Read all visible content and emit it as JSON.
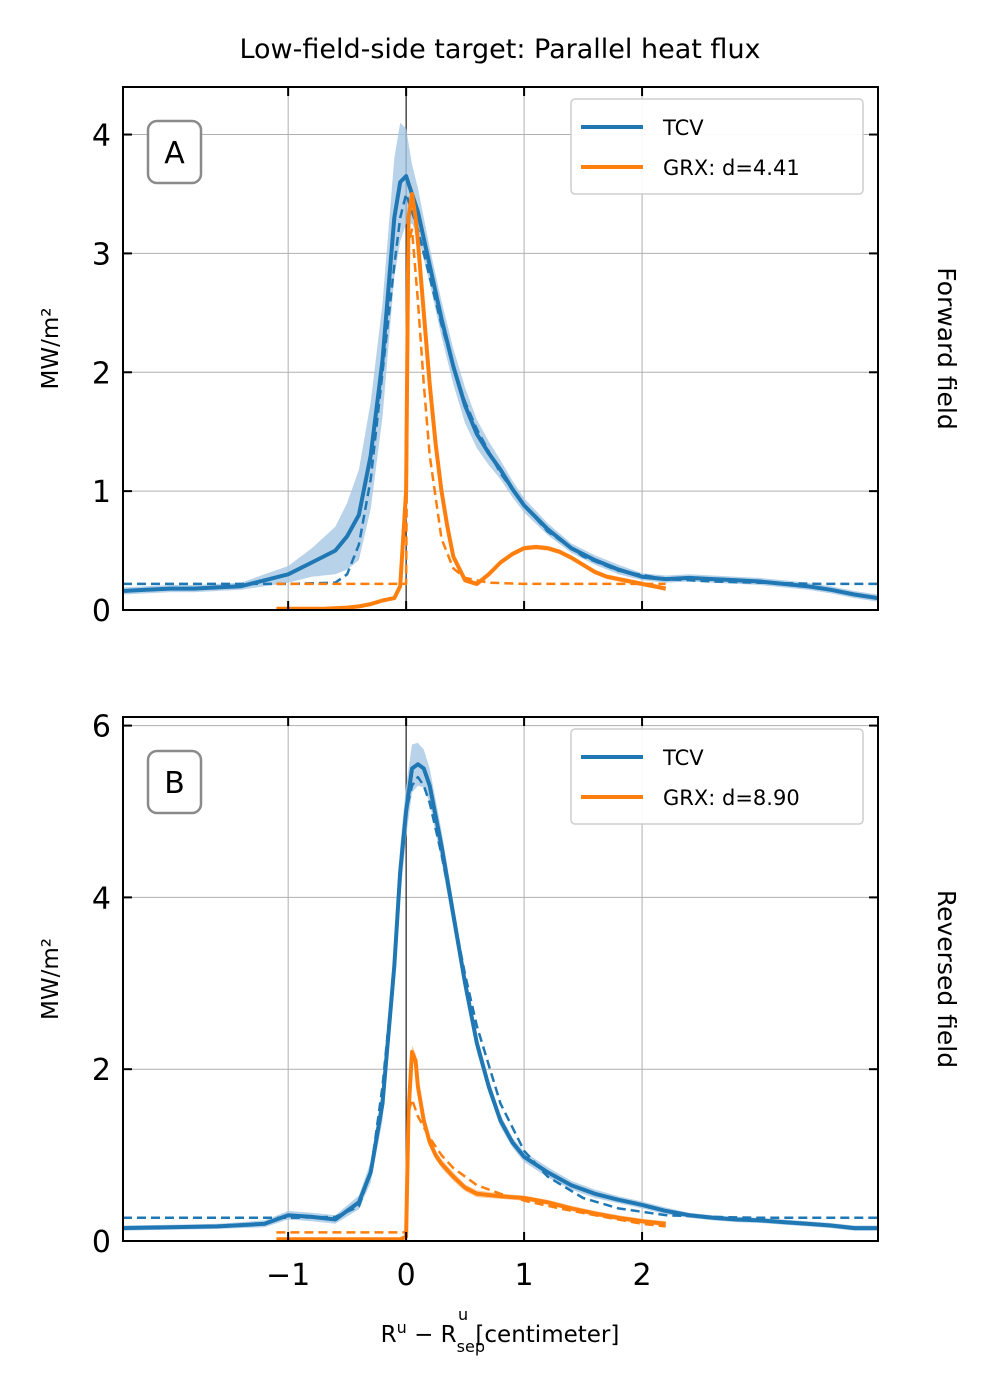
{
  "figure": {
    "title": "Low-field-side target: Parallel heat flux",
    "xlabel_main": "R",
    "xlabel_sup": "u",
    "xlabel_minus": " − R",
    "xlabel_sub": "sep",
    "xlabel_sup2": "u",
    "xlabel_units": " [centimeter]"
  },
  "colors": {
    "tcv": "#1f77b4",
    "grx": "#ff7f0e",
    "band": "#a6c8e3",
    "grid": "#b0b0b0",
    "frame": "#000000"
  },
  "chart_data": [
    {
      "type": "line",
      "panel_label": "A",
      "side_label": "Forward field",
      "ylabel": "MW/m²",
      "xlim": [
        -2.4,
        4.0
      ],
      "ylim": [
        0,
        4.4
      ],
      "xticks": [
        -1,
        0,
        1,
        2
      ],
      "xtick_labels": [],
      "yticks": [
        0,
        1,
        2,
        3,
        4
      ],
      "ytick_labels": [
        "0",
        "1",
        "2",
        "3",
        "4"
      ],
      "grid": true,
      "legend_position": "top-right",
      "series": [
        {
          "name": "TCV",
          "color": "#1f77b4",
          "x": [
            -2.4,
            -2.2,
            -2.0,
            -1.8,
            -1.6,
            -1.4,
            -1.2,
            -1.0,
            -0.8,
            -0.6,
            -0.5,
            -0.4,
            -0.3,
            -0.2,
            -0.1,
            -0.05,
            0.0,
            0.05,
            0.1,
            0.2,
            0.3,
            0.4,
            0.5,
            0.6,
            0.7,
            0.8,
            0.9,
            1.0,
            1.2,
            1.4,
            1.6,
            1.8,
            2.0,
            2.2,
            2.4,
            2.6,
            2.8,
            3.0,
            3.2,
            3.4,
            3.6,
            3.8,
            4.0
          ],
          "y": [
            0.16,
            0.17,
            0.18,
            0.18,
            0.19,
            0.2,
            0.25,
            0.3,
            0.4,
            0.5,
            0.62,
            0.8,
            1.3,
            2.1,
            3.3,
            3.6,
            3.65,
            3.5,
            3.35,
            2.9,
            2.45,
            2.05,
            1.72,
            1.48,
            1.32,
            1.18,
            1.02,
            0.88,
            0.68,
            0.52,
            0.42,
            0.34,
            0.28,
            0.26,
            0.27,
            0.26,
            0.25,
            0.24,
            0.22,
            0.2,
            0.17,
            0.13,
            0.1
          ],
          "band": [
            0.03,
            0.03,
            0.03,
            0.03,
            0.03,
            0.03,
            0.05,
            0.07,
            0.12,
            0.2,
            0.28,
            0.38,
            0.45,
            0.48,
            0.5,
            0.5,
            0.4,
            0.25,
            0.2,
            0.15,
            0.15,
            0.15,
            0.15,
            0.12,
            0.1,
            0.08,
            0.07,
            0.06,
            0.05,
            0.04,
            0.04,
            0.04,
            0.03,
            0.03,
            0.03,
            0.03,
            0.03,
            0.03,
            0.03,
            0.03,
            0.03,
            0.03,
            0.03
          ]
        },
        {
          "name": "",
          "color": "#1f77b4",
          "dashed": true,
          "x": [
            -2.4,
            -1.5,
            -1.0,
            -0.6,
            -0.5,
            -0.4,
            -0.3,
            -0.2,
            -0.1,
            -0.05,
            0.0,
            0.05,
            0.1,
            0.2,
            0.3,
            0.4,
            0.5,
            0.6,
            0.8,
            1.0,
            1.2,
            1.5,
            1.8,
            2.2,
            2.6,
            3.0,
            3.5,
            4.0
          ],
          "y": [
            0.22,
            0.22,
            0.22,
            0.23,
            0.3,
            0.55,
            1.1,
            2.0,
            2.9,
            3.3,
            3.5,
            3.35,
            3.2,
            2.8,
            2.4,
            2.05,
            1.75,
            1.52,
            1.15,
            0.88,
            0.66,
            0.45,
            0.33,
            0.26,
            0.24,
            0.23,
            0.22,
            0.22
          ]
        },
        {
          "name": "GRX: d=4.41",
          "color": "#ff7f0e",
          "x": [
            -1.1,
            -0.9,
            -0.7,
            -0.5,
            -0.4,
            -0.3,
            -0.2,
            -0.1,
            -0.05,
            0.0,
            0.02,
            0.05,
            0.08,
            0.1,
            0.15,
            0.2,
            0.25,
            0.3,
            0.35,
            0.4,
            0.5,
            0.6,
            0.7,
            0.8,
            0.9,
            1.0,
            1.1,
            1.2,
            1.3,
            1.4,
            1.5,
            1.6,
            1.7,
            1.8,
            1.9,
            2.0,
            2.1,
            2.2
          ],
          "y": [
            0.01,
            0.01,
            0.01,
            0.02,
            0.03,
            0.05,
            0.08,
            0.1,
            0.2,
            1.0,
            3.3,
            3.5,
            3.3,
            3.1,
            2.5,
            1.9,
            1.4,
            1.0,
            0.7,
            0.45,
            0.25,
            0.22,
            0.3,
            0.4,
            0.47,
            0.52,
            0.53,
            0.52,
            0.49,
            0.44,
            0.38,
            0.32,
            0.28,
            0.26,
            0.24,
            0.22,
            0.2,
            0.18
          ],
          "band": [
            0.01,
            0.01,
            0.01,
            0.01,
            0.01,
            0.01,
            0.01,
            0.01,
            0.02,
            0.05,
            0.08,
            0.08,
            0.08,
            0.06,
            0.05,
            0.04,
            0.04,
            0.03,
            0.03,
            0.03,
            0.02,
            0.02,
            0.02,
            0.02,
            0.02,
            0.02,
            0.02,
            0.02,
            0.02,
            0.02,
            0.02,
            0.02,
            0.02,
            0.02,
            0.02,
            0.02,
            0.02,
            0.02
          ]
        },
        {
          "name": "",
          "color": "#ff7f0e",
          "dashed": true,
          "x": [
            -1.1,
            -0.5,
            -0.1,
            0.0,
            0.02,
            0.05,
            0.1,
            0.15,
            0.2,
            0.3,
            0.4,
            0.5,
            0.7,
            1.0,
            1.5,
            2.2
          ],
          "y": [
            0.22,
            0.22,
            0.22,
            0.22,
            3.1,
            3.2,
            2.6,
            1.9,
            1.3,
            0.6,
            0.35,
            0.27,
            0.23,
            0.22,
            0.22,
            0.22
          ]
        }
      ]
    },
    {
      "type": "line",
      "panel_label": "B",
      "side_label": "Reversed field",
      "ylabel": "MW/m²",
      "xlim": [
        -2.4,
        4.0
      ],
      "ylim": [
        0,
        6.1
      ],
      "xticks": [
        -1,
        0,
        1,
        2
      ],
      "xtick_labels": [
        "−1",
        "0",
        "1",
        "2"
      ],
      "yticks": [
        0,
        2,
        4,
        6
      ],
      "ytick_labels": [
        "0",
        "2",
        "4",
        "6"
      ],
      "grid": true,
      "legend_position": "top-right",
      "series": [
        {
          "name": "TCV",
          "color": "#1f77b4",
          "x": [
            -2.4,
            -2.0,
            -1.6,
            -1.2,
            -1.0,
            -0.8,
            -0.6,
            -0.4,
            -0.3,
            -0.2,
            -0.1,
            -0.05,
            0.0,
            0.05,
            0.1,
            0.15,
            0.2,
            0.3,
            0.4,
            0.5,
            0.6,
            0.7,
            0.8,
            0.9,
            1.0,
            1.2,
            1.4,
            1.6,
            1.8,
            2.0,
            2.2,
            2.4,
            2.6,
            2.8,
            3.0,
            3.2,
            3.4,
            3.6,
            3.8,
            4.0
          ],
          "y": [
            0.15,
            0.16,
            0.17,
            0.2,
            0.3,
            0.28,
            0.25,
            0.45,
            0.8,
            1.6,
            3.2,
            4.3,
            5.0,
            5.5,
            5.55,
            5.5,
            5.3,
            4.6,
            3.8,
            3.0,
            2.3,
            1.8,
            1.4,
            1.15,
            0.98,
            0.8,
            0.65,
            0.55,
            0.48,
            0.42,
            0.35,
            0.3,
            0.27,
            0.25,
            0.24,
            0.22,
            0.2,
            0.18,
            0.15,
            0.15
          ],
          "band": [
            0.03,
            0.03,
            0.03,
            0.04,
            0.05,
            0.05,
            0.05,
            0.08,
            0.12,
            0.2,
            0.25,
            0.3,
            0.3,
            0.28,
            0.25,
            0.22,
            0.2,
            0.18,
            0.15,
            0.12,
            0.1,
            0.08,
            0.07,
            0.06,
            0.06,
            0.06,
            0.05,
            0.05,
            0.04,
            0.04,
            0.04,
            0.03,
            0.03,
            0.03,
            0.03,
            0.03,
            0.03,
            0.03,
            0.03,
            0.03
          ]
        },
        {
          "name": "",
          "color": "#1f77b4",
          "dashed": true,
          "x": [
            -2.4,
            -1.5,
            -1.0,
            -0.6,
            -0.4,
            -0.3,
            -0.2,
            -0.1,
            -0.05,
            0.0,
            0.05,
            0.1,
            0.15,
            0.2,
            0.3,
            0.4,
            0.5,
            0.6,
            0.8,
            1.0,
            1.2,
            1.5,
            1.8,
            2.2,
            2.6,
            3.0,
            3.5,
            4.0
          ],
          "y": [
            0.27,
            0.27,
            0.27,
            0.28,
            0.4,
            0.8,
            1.8,
            3.2,
            4.3,
            5.0,
            5.3,
            5.4,
            5.3,
            5.1,
            4.5,
            3.8,
            3.1,
            2.5,
            1.6,
            1.05,
            0.75,
            0.5,
            0.38,
            0.3,
            0.28,
            0.27,
            0.27,
            0.27
          ]
        },
        {
          "name": "GRX: d=8.90",
          "color": "#ff7f0e",
          "x": [
            -1.1,
            -0.8,
            -0.5,
            -0.2,
            -0.05,
            0.0,
            0.02,
            0.05,
            0.08,
            0.1,
            0.15,
            0.2,
            0.25,
            0.3,
            0.4,
            0.5,
            0.6,
            0.8,
            1.0,
            1.2,
            1.4,
            1.6,
            1.8,
            2.0,
            2.2
          ],
          "y": [
            0.02,
            0.02,
            0.02,
            0.02,
            0.02,
            0.05,
            1.5,
            2.2,
            2.1,
            1.8,
            1.4,
            1.15,
            1.0,
            0.9,
            0.75,
            0.62,
            0.55,
            0.52,
            0.5,
            0.45,
            0.38,
            0.32,
            0.27,
            0.23,
            0.2
          ],
          "band": [
            0.01,
            0.01,
            0.01,
            0.01,
            0.01,
            0.02,
            0.05,
            0.08,
            0.08,
            0.07,
            0.06,
            0.05,
            0.05,
            0.05,
            0.05,
            0.04,
            0.04,
            0.03,
            0.03,
            0.03,
            0.03,
            0.03,
            0.03,
            0.03,
            0.03
          ]
        },
        {
          "name": "",
          "color": "#ff7f0e",
          "dashed": true,
          "x": [
            -1.1,
            -0.5,
            -0.05,
            0.0,
            0.02,
            0.05,
            0.1,
            0.2,
            0.3,
            0.4,
            0.6,
            0.8,
            1.0,
            1.3,
            1.6,
            2.0,
            2.2
          ],
          "y": [
            0.1,
            0.1,
            0.1,
            0.1,
            1.5,
            1.65,
            1.45,
            1.2,
            1.0,
            0.85,
            0.65,
            0.55,
            0.47,
            0.38,
            0.3,
            0.2,
            0.17
          ]
        }
      ]
    }
  ]
}
